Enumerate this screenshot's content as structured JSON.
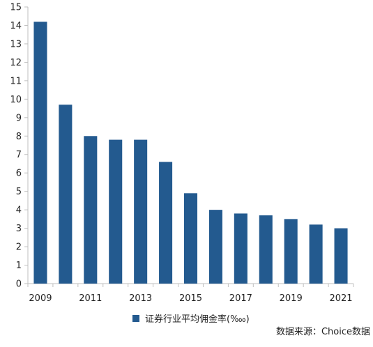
{
  "chart_data": {
    "type": "bar",
    "categories": [
      "2009",
      "2010",
      "2011",
      "2012",
      "2013",
      "2014",
      "2015",
      "2016",
      "2017",
      "2018",
      "2019",
      "2020",
      "2021"
    ],
    "x_tick_labels": [
      "2009",
      "",
      "2011",
      "",
      "2013",
      "",
      "2015",
      "",
      "2017",
      "",
      "2019",
      "",
      "2021"
    ],
    "series": [
      {
        "name": "证券行业平均佣金率(‱)",
        "values": [
          14.2,
          9.7,
          8.0,
          7.8,
          7.8,
          6.6,
          4.9,
          4.0,
          3.8,
          3.7,
          3.5,
          3.2,
          3.0
        ]
      }
    ],
    "ylim": [
      0,
      15
    ],
    "y_ticks": [
      0,
      1,
      2,
      3,
      4,
      5,
      6,
      7,
      8,
      9,
      10,
      11,
      12,
      13,
      14,
      15
    ],
    "grid": false,
    "legend_position": "bottom",
    "bar_color": "#235a8f"
  },
  "legend": {
    "label": "证券行业平均佣金率(‱)"
  },
  "source_note": "数据来源：Choice数据"
}
